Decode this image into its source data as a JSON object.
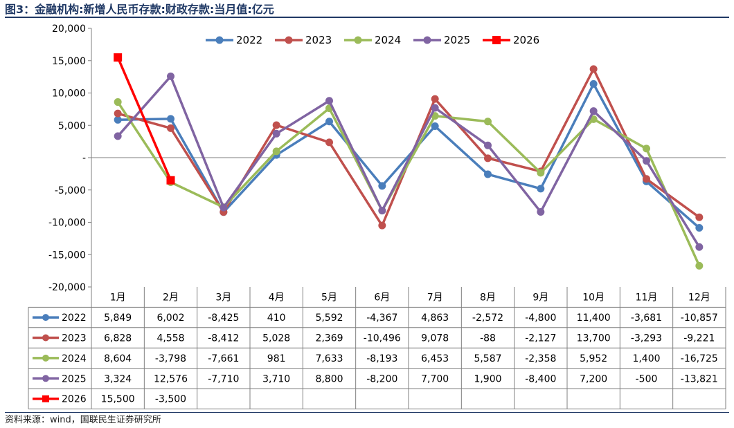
{
  "title": "图3：金融机构:新增人民币存款:财政存款:当月值:亿元",
  "source": "资料来源：wind，国联民生证券研究所",
  "chart_data": {
    "type": "line",
    "categories": [
      "1月",
      "2月",
      "3月",
      "4月",
      "5月",
      "6月",
      "7月",
      "8月",
      "9月",
      "10月",
      "11月",
      "12月"
    ],
    "ylim": [
      -20000,
      20000
    ],
    "yticks": [
      -20000,
      -15000,
      -10000,
      -5000,
      0,
      5000,
      10000,
      15000,
      20000
    ],
    "ytick_labels": [
      "-20,000",
      "-15,000",
      "-10,000",
      "-5,000",
      "-",
      "5,000",
      "10,000",
      "15,000",
      "20,000"
    ],
    "legend_position": "top",
    "series": [
      {
        "name": "2022",
        "color": "#4a7ebb",
        "marker": "circle",
        "values": [
          5849,
          6002,
          -8425,
          410,
          5592,
          -4367,
          4863,
          -2572,
          -4800,
          11400,
          -3681,
          -10857
        ],
        "labels": [
          "5,849",
          "6,002",
          "-8,425",
          "410",
          "5,592",
          "-4,367",
          "4,863",
          "-2,572",
          "-4,800",
          "11,400",
          "-3,681",
          "-10,857"
        ]
      },
      {
        "name": "2023",
        "color": "#c0504d",
        "marker": "circle",
        "values": [
          6828,
          4558,
          -8412,
          5028,
          2369,
          -10496,
          9078,
          -88,
          -2127,
          13700,
          -3293,
          -9221
        ],
        "labels": [
          "6,828",
          "4,558",
          "-8,412",
          "5,028",
          "2,369",
          "-10,496",
          "9,078",
          "-88",
          "-2,127",
          "13,700",
          "-3,293",
          "-9,221"
        ]
      },
      {
        "name": "2024",
        "color": "#9bbb59",
        "marker": "circle",
        "values": [
          8604,
          -3798,
          -7661,
          981,
          7633,
          -8193,
          6453,
          5587,
          -2358,
          5952,
          1400,
          -16725
        ],
        "labels": [
          "8,604",
          "-3,798",
          "-7,661",
          "981",
          "7,633",
          "-8,193",
          "6,453",
          "5,587",
          "-2,358",
          "5,952",
          "1,400",
          "-16,725"
        ]
      },
      {
        "name": "2025",
        "color": "#8064a2",
        "marker": "circle",
        "values": [
          3324,
          12576,
          -7710,
          3710,
          8800,
          -8200,
          7700,
          1900,
          -8400,
          7200,
          -500,
          -13821
        ],
        "labels": [
          "3,324",
          "12,576",
          "-7,710",
          "3,710",
          "8,800",
          "-8,200",
          "7,700",
          "1,900",
          "-8,400",
          "7,200",
          "-500",
          "-13,821"
        ]
      },
      {
        "name": "2026",
        "color": "#ff0000",
        "marker": "square",
        "values": [
          15500,
          -3500,
          null,
          null,
          null,
          null,
          null,
          null,
          null,
          null,
          null,
          null
        ],
        "labels": [
          "15,500",
          "-3,500",
          "",
          "",
          "",
          "",
          "",
          "",
          "",
          "",
          "",
          ""
        ]
      }
    ]
  }
}
